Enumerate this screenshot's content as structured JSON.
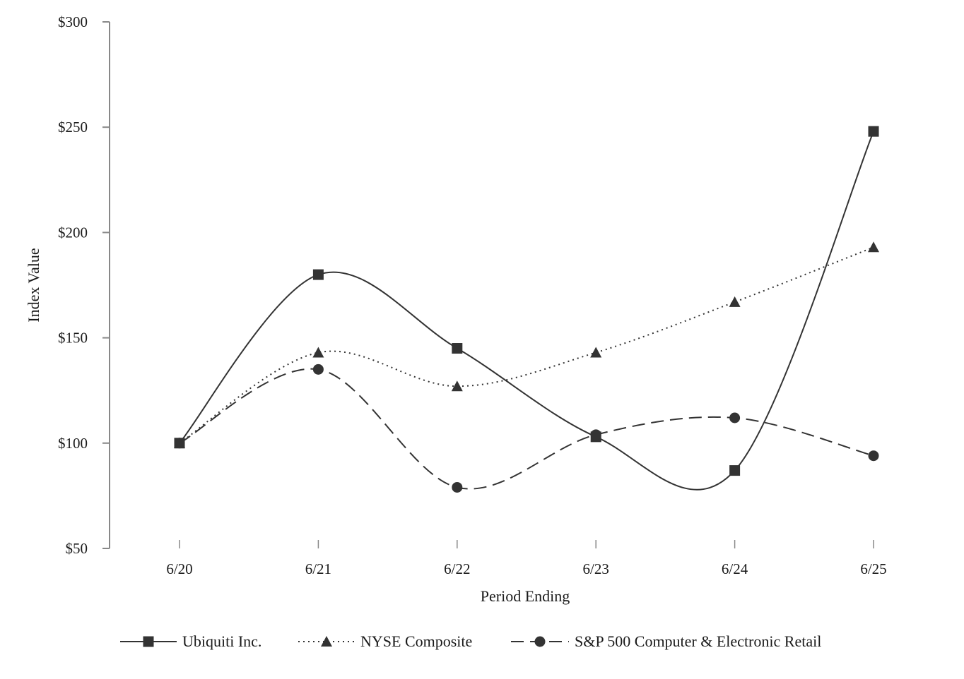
{
  "chart_data": {
    "type": "line",
    "title": "",
    "xlabel": "Period Ending",
    "ylabel": "Index Value",
    "categories": [
      "6/20",
      "6/21",
      "6/22",
      "6/23",
      "6/24",
      "6/25"
    ],
    "ylim": [
      50,
      300
    ],
    "yticks": [
      50,
      100,
      150,
      200,
      250,
      300
    ],
    "ytick_labels": [
      "$50",
      "$100",
      "$150",
      "$200",
      "$250",
      "$300"
    ],
    "grid": false,
    "legend_position": "bottom",
    "line_style": "smooth",
    "series": [
      {
        "name": "Ubiquiti Inc.",
        "values": [
          100,
          180,
          145,
          103,
          87,
          248
        ],
        "marker": "square",
        "dash": "solid",
        "color": "#333333"
      },
      {
        "name": "NYSE Composite",
        "values": [
          100,
          143,
          127,
          143,
          167,
          193
        ],
        "marker": "triangle",
        "dash": "dotted",
        "color": "#333333"
      },
      {
        "name": "S&P 500 Computer & Electronic Retail",
        "values": [
          100,
          135,
          79,
          104,
          112,
          94
        ],
        "marker": "circle",
        "dash": "dashed",
        "color": "#333333"
      }
    ]
  }
}
